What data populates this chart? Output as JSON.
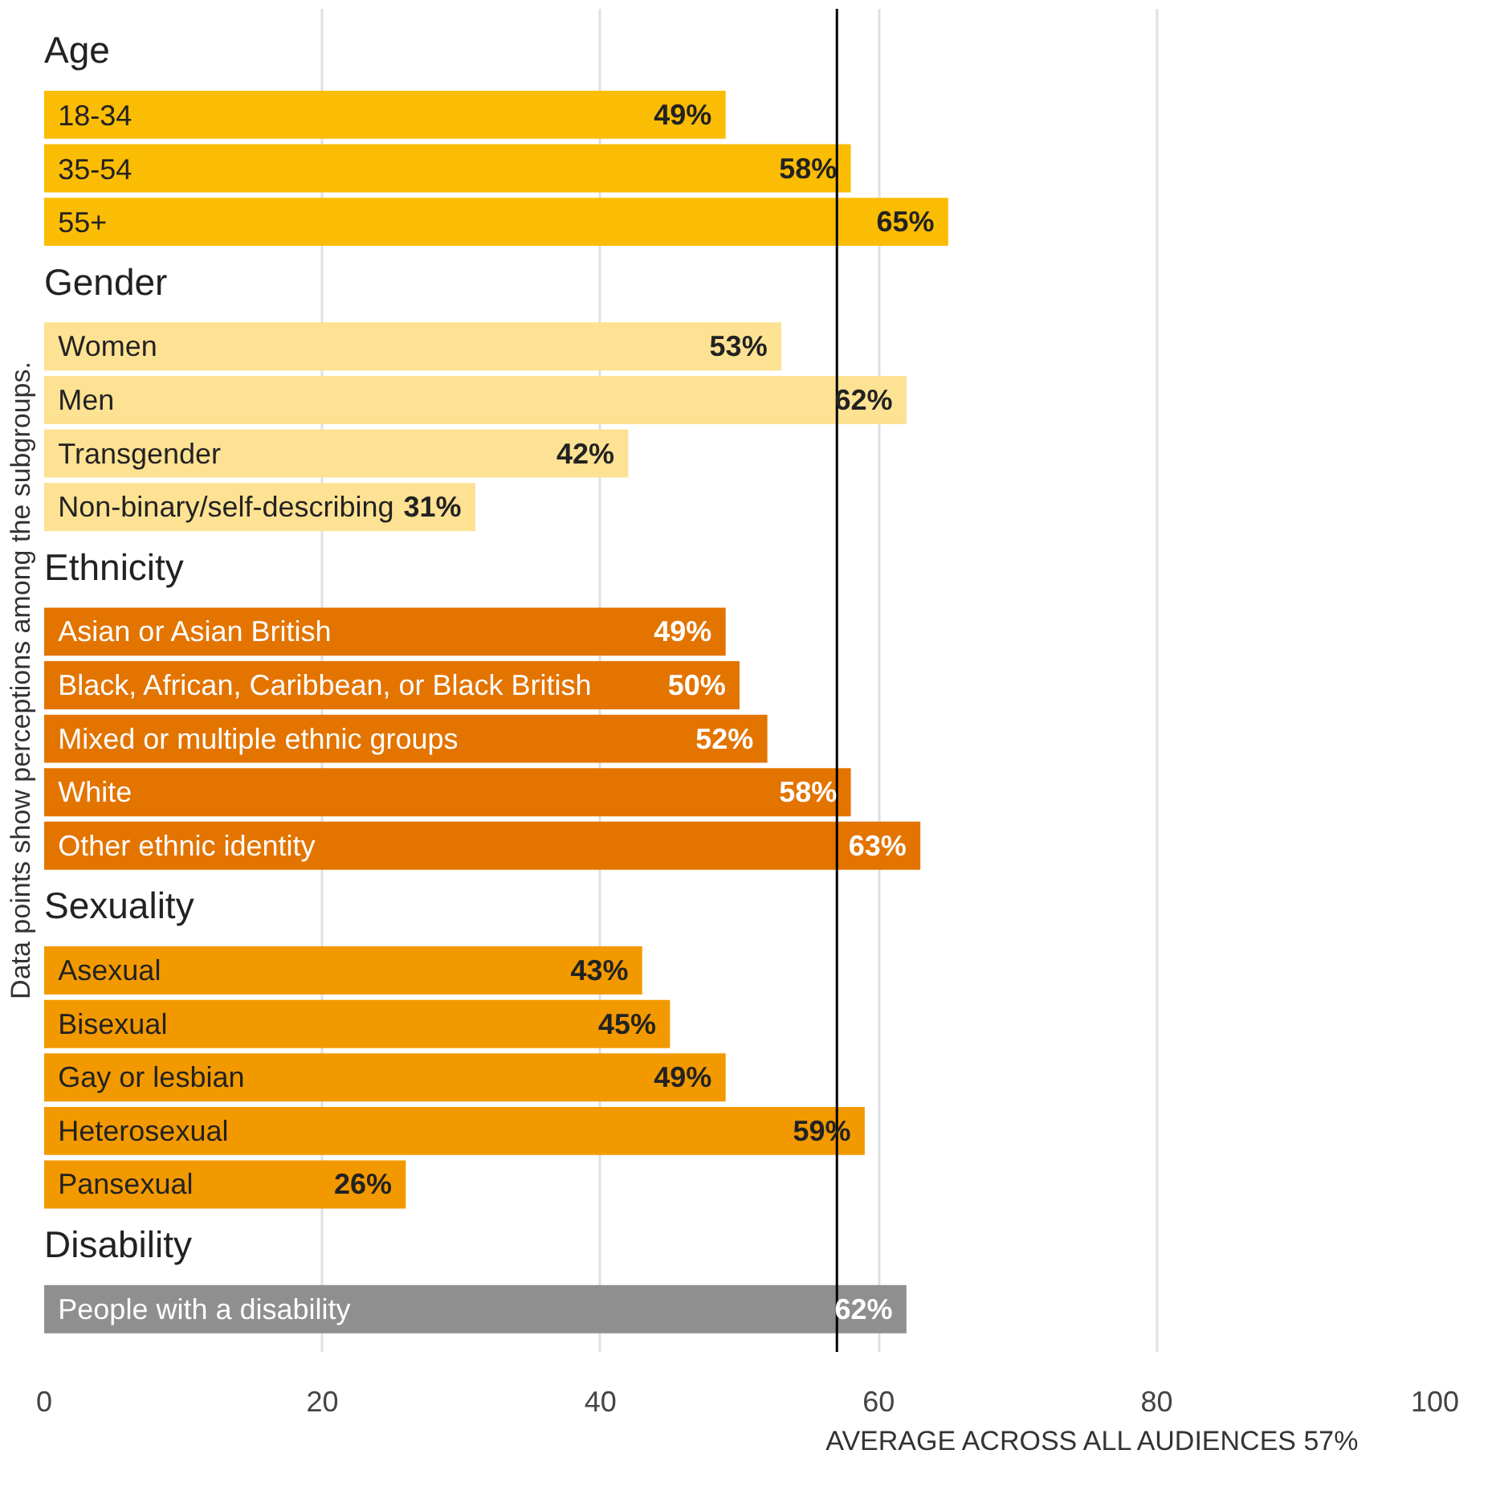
{
  "chart_data": {
    "type": "bar",
    "orientation": "horizontal",
    "ylabel": "Data points show perceptions among the subgroups.",
    "categories": [
      "18-34",
      "35-54",
      "55+",
      "Women",
      "Men",
      "Transgender",
      "Non-binary/self-describing",
      "Asian or Asian British",
      "Black, African, Caribbean, or Black British",
      "Mixed or multiple ethnic groups",
      "White",
      "Other ethnic identity",
      "Asexual",
      "Bisexual",
      "Gay or lesbian",
      "Heterosexual",
      "Pansexual",
      "People with a disability"
    ],
    "series": [
      {
        "name": "Age",
        "color": "#fbbc04",
        "values": [
          49,
          58,
          65,
          null,
          null,
          null,
          null,
          null,
          null,
          null,
          null,
          null,
          null,
          null,
          null,
          null,
          null,
          null
        ],
        "value_labels": [
          "49%",
          "58%",
          "65%",
          null,
          null,
          null,
          null,
          null,
          null,
          null,
          null,
          null,
          null,
          null,
          null,
          null,
          null,
          null
        ]
      },
      {
        "name": "Gender",
        "color": "#fde293",
        "values": [
          null,
          null,
          null,
          53,
          62,
          42,
          31,
          null,
          null,
          null,
          null,
          null,
          null,
          null,
          null,
          null,
          null,
          null
        ],
        "value_labels": [
          null,
          null,
          null,
          "53%",
          "62%",
          "42%",
          "31%",
          null,
          null,
          null,
          null,
          null,
          null,
          null,
          null,
          null,
          null,
          null
        ]
      },
      {
        "name": "Ethnicity",
        "color": "#e37400",
        "values": [
          null,
          null,
          null,
          null,
          null,
          null,
          null,
          49,
          50,
          52,
          58,
          63,
          null,
          null,
          null,
          null,
          null,
          null
        ],
        "value_labels": [
          null,
          null,
          null,
          null,
          null,
          null,
          null,
          "49%",
          "50%",
          "52%",
          "58%",
          "63%",
          null,
          null,
          null,
          null,
          null,
          null
        ]
      },
      {
        "name": "Sexuality",
        "color": "#f29900",
        "values": [
          null,
          null,
          null,
          null,
          null,
          null,
          null,
          null,
          null,
          null,
          null,
          null,
          43,
          45,
          49,
          59,
          26,
          null
        ],
        "value_labels": [
          null,
          null,
          null,
          null,
          null,
          null,
          null,
          null,
          null,
          null,
          null,
          null,
          "43%",
          "45%",
          "49%",
          "59%",
          "26%",
          null
        ]
      },
      {
        "name": "Disability",
        "color": "#8f8f8f",
        "values": [
          null,
          null,
          null,
          null,
          null,
          null,
          null,
          null,
          null,
          null,
          null,
          null,
          null,
          null,
          null,
          null,
          null,
          62
        ],
        "value_labels": [
          null,
          null,
          null,
          null,
          null,
          null,
          null,
          null,
          null,
          null,
          null,
          null,
          null,
          null,
          null,
          null,
          null,
          "62%"
        ]
      }
    ],
    "xlim": [
      0,
      100
    ],
    "xticks": [
      0,
      20,
      40,
      60,
      80,
      100
    ],
    "grid": "x",
    "tick_labels": "x",
    "ref_lines": [
      {
        "axis": "x",
        "value": 57,
        "label": "AVERAGE ACROSS ALL AUDIENCES 57%",
        "color": "#000000"
      }
    ]
  }
}
